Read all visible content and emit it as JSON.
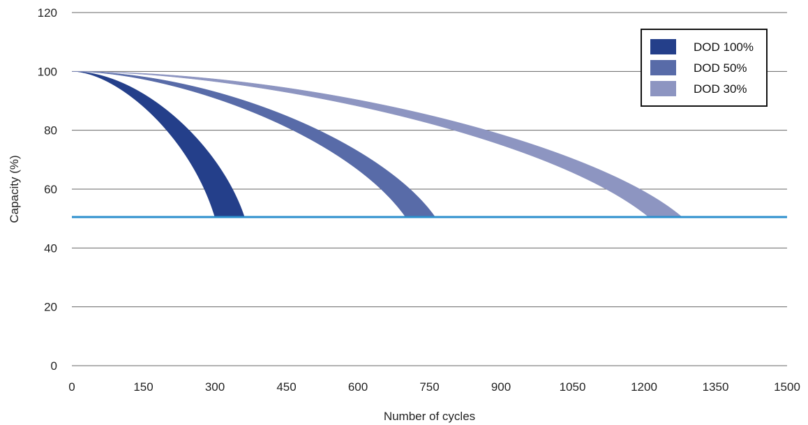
{
  "chart_data": {
    "type": "area",
    "xlabel": "Number of cycles",
    "ylabel": "Capacity (%)",
    "xlim": [
      0,
      1500
    ],
    "ylim": [
      0,
      120
    ],
    "x_ticks": [
      "0",
      "150",
      "300",
      "450",
      "600",
      "750",
      "900",
      "1050",
      "1200",
      "1350",
      "1500"
    ],
    "y_ticks": [
      "0",
      "20",
      "40",
      "60",
      "80",
      "100",
      "120"
    ],
    "grid": "horizontal",
    "legend_position": "top-right",
    "threshold": {
      "y": 50.5,
      "color": "#2b8fcd"
    },
    "series": [
      {
        "name": "DOD 100%",
        "color": "#243f8a",
        "start": [
          0,
          100
        ],
        "inner_end": [
          300,
          50.5
        ],
        "outer_end": [
          362,
          50.5
        ]
      },
      {
        "name": "DOD 50%",
        "color": "#586ba8",
        "start": [
          0,
          100
        ],
        "inner_end": [
          700,
          50.5
        ],
        "outer_end": [
          762,
          50.5
        ]
      },
      {
        "name": "DOD 30%",
        "color": "#8d95c1",
        "start": [
          0,
          100
        ],
        "inner_end": [
          1210,
          50.5
        ],
        "outer_end": [
          1280,
          50.5
        ]
      }
    ]
  }
}
